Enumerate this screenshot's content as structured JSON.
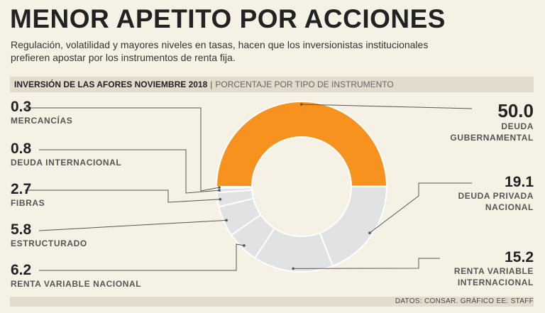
{
  "header": {
    "title": "MENOR APETITO POR ACCIONES",
    "subtitle": "Regulación, volatilidad y mayores niveles en tasas, hacen que los inversionistas institucionales prefieren apostar por los instrumentos de renta fija."
  },
  "band": {
    "title": "INVERSIÓN DE LAS AFORES NOVIEMBRE 2018",
    "separator": "|",
    "subtitle": "PORCENTAJE POR TIPO DE INSTRUMENTO"
  },
  "colors": {
    "highlight": "#f7921e",
    "segment": "#e1e2e4",
    "separator": "#ffffff",
    "leader": "#555555"
  },
  "chart_data": {
    "type": "donut",
    "title": "INVERSIÓN DE LAS AFORES NOVIEMBRE 2018",
    "subtitle": "PORCENTAJE POR TIPO DE INSTRUMENTO",
    "unit": "%",
    "slices": [
      {
        "label": "DEUDA GUBERNAMENTAL",
        "value": 50.0,
        "display": "50.0",
        "highlight": true
      },
      {
        "label": "DEUDA PRIVADA NACIONAL",
        "value": 19.1,
        "display": "19.1"
      },
      {
        "label": "RENTA VARIABLE INTERNACIONAL",
        "value": 15.2,
        "display": "15.2"
      },
      {
        "label": "RENTA VARIABLE NACIONAL",
        "value": 6.2,
        "display": "6.2"
      },
      {
        "label": "ESTRUCTURADO",
        "value": 5.8,
        "display": "5.8"
      },
      {
        "label": "FIBRAS",
        "value": 2.7,
        "display": "2.7"
      },
      {
        "label": "DEUDA INTERNACIONAL",
        "value": 0.8,
        "display": "0.8"
      },
      {
        "label": "MERCANCÍAS",
        "value": 0.3,
        "display": "0.3"
      }
    ]
  },
  "labels": {
    "deuda_gubernamental": {
      "value": "50.0",
      "line1": "DEUDA",
      "line2": "GUBERNAMENTAL"
    },
    "deuda_privada": {
      "value": "19.1",
      "line1": "DEUDA PRIVADA",
      "line2": "NACIONAL"
    },
    "renta_var_int": {
      "value": "15.2",
      "line1": "RENTA VARIABLE",
      "line2": "INTERNACIONAL"
    },
    "mercancias": {
      "value": "0.3",
      "line1": "MERCANCÍAS"
    },
    "deuda_int": {
      "value": "0.8",
      "line1": "DEUDA INTERNACIONAL"
    },
    "fibras": {
      "value": "2.7",
      "line1": "FIBRAS"
    },
    "estructurado": {
      "value": "5.8",
      "line1": "ESTRUCTURADO"
    },
    "renta_var_nac": {
      "value": "6.2",
      "line1": "RENTA VARIABLE NACIONAL"
    }
  },
  "footer": {
    "source": "DATOS: CONSAR. GRÁFICO EE: STAFF"
  }
}
